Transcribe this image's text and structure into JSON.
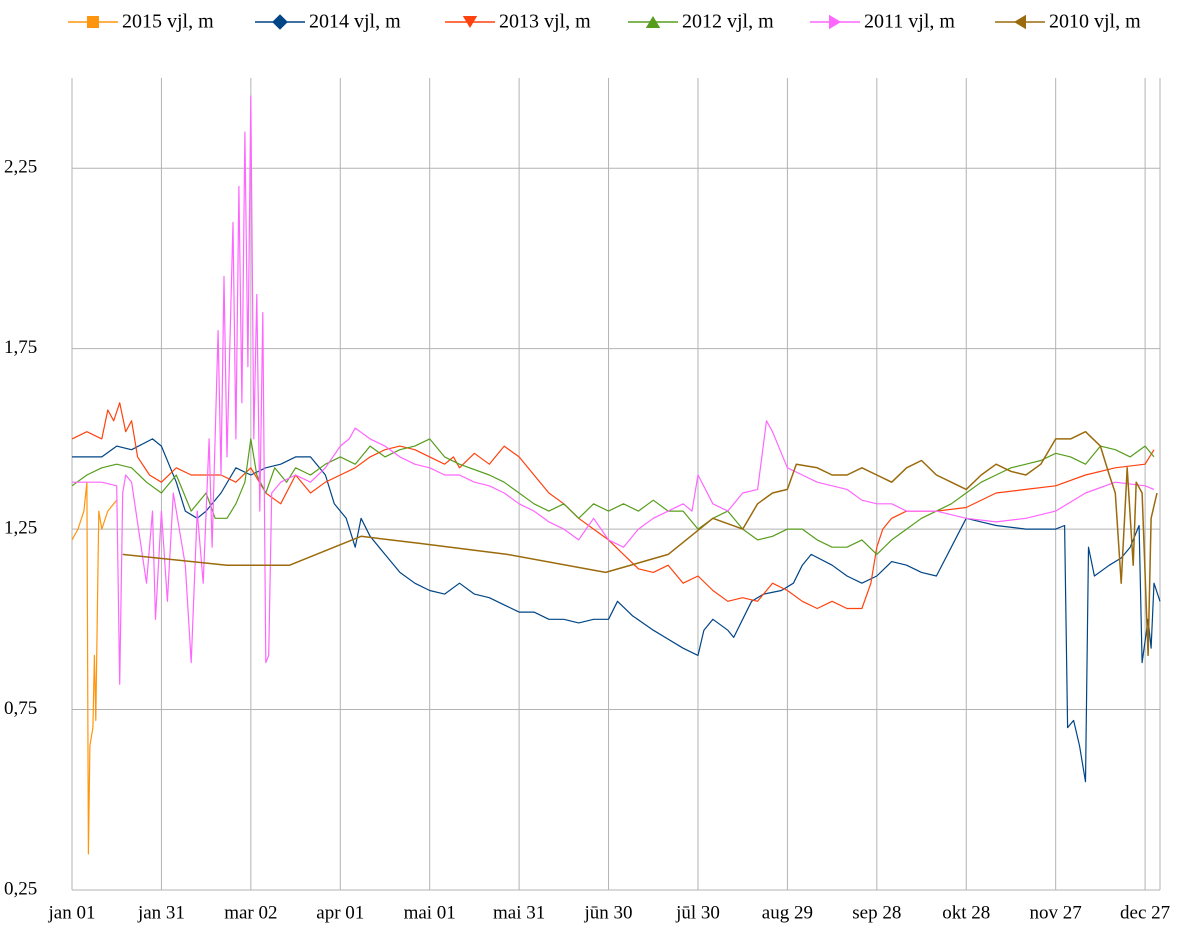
{
  "chart_data": {
    "type": "line",
    "xlim": [
      0,
      365
    ],
    "xticks": [
      {
        "value": 0,
        "label": "jan 01"
      },
      {
        "value": 30,
        "label": "jan 31"
      },
      {
        "value": 60,
        "label": "mar 02"
      },
      {
        "value": 90,
        "label": "apr 01"
      },
      {
        "value": 120,
        "label": "mai 01"
      },
      {
        "value": 150,
        "label": "mai 31"
      },
      {
        "value": 180,
        "label": "jūn 30"
      },
      {
        "value": 210,
        "label": "jūl 30"
      },
      {
        "value": 240,
        "label": "aug 29"
      },
      {
        "value": 270,
        "label": "sep 28"
      },
      {
        "value": 300,
        "label": "okt 28"
      },
      {
        "value": 330,
        "label": "nov 27"
      },
      {
        "value": 360,
        "label": "dec 27"
      }
    ],
    "ylim": [
      0.25,
      2.5
    ],
    "yticks": [
      {
        "value": 0.25,
        "label": "0,25"
      },
      {
        "value": 0.75,
        "label": "0,75"
      },
      {
        "value": 1.25,
        "label": "1,25"
      },
      {
        "value": 1.75,
        "label": "1,75"
      },
      {
        "value": 2.25,
        "label": "2,25"
      }
    ],
    "grid": true,
    "legend": "top",
    "series": [
      {
        "name": "2015 vjl, m",
        "color": "#ff950e",
        "marker": "square",
        "x": [
          0,
          2,
          4,
          5,
          5.5,
          6,
          7,
          7.5,
          8,
          9,
          10,
          12,
          14,
          15
        ],
        "values": [
          1.22,
          1.25,
          1.3,
          1.38,
          0.35,
          0.65,
          0.7,
          0.9,
          0.72,
          1.3,
          1.25,
          1.3,
          1.32,
          1.33
        ]
      },
      {
        "name": "2014 vjl, m",
        "color": "#004586",
        "marker": "diamond",
        "x": [
          0,
          10,
          15,
          20,
          27,
          30,
          35,
          38,
          42,
          45,
          50,
          55,
          60,
          65,
          70,
          75,
          80,
          85,
          88,
          92,
          95,
          97,
          100,
          105,
          110,
          115,
          120,
          125,
          130,
          135,
          140,
          145,
          150,
          155,
          160,
          165,
          170,
          175,
          180,
          183,
          188,
          195,
          205,
          210,
          212,
          215,
          220,
          222,
          228,
          232,
          238,
          242,
          245,
          248,
          255,
          260,
          265,
          270,
          275,
          280,
          285,
          290,
          295,
          300,
          305,
          310,
          320,
          330,
          333,
          334,
          336,
          338,
          340,
          341,
          343,
          348,
          352,
          355,
          358,
          359,
          361,
          362,
          363,
          365
        ],
        "values": [
          1.45,
          1.45,
          1.48,
          1.47,
          1.5,
          1.48,
          1.38,
          1.3,
          1.28,
          1.3,
          1.35,
          1.42,
          1.4,
          1.42,
          1.43,
          1.45,
          1.45,
          1.4,
          1.32,
          1.28,
          1.2,
          1.28,
          1.23,
          1.18,
          1.13,
          1.1,
          1.08,
          1.07,
          1.1,
          1.07,
          1.06,
          1.04,
          1.02,
          1.02,
          1.0,
          1.0,
          0.99,
          1.0,
          1.0,
          1.05,
          1.01,
          0.97,
          0.92,
          0.9,
          0.97,
          1.0,
          0.97,
          0.95,
          1.05,
          1.07,
          1.08,
          1.1,
          1.15,
          1.18,
          1.15,
          1.12,
          1.1,
          1.12,
          1.16,
          1.15,
          1.13,
          1.12,
          1.2,
          1.28,
          1.27,
          1.26,
          1.25,
          1.25,
          1.26,
          0.7,
          0.72,
          0.65,
          0.55,
          1.2,
          1.12,
          1.15,
          1.17,
          1.2,
          1.26,
          0.88,
          1.0,
          0.92,
          1.1,
          1.05
        ]
      },
      {
        "name": "2013 vjl, m",
        "color": "#ff420e",
        "marker": "down",
        "x": [
          0,
          5,
          10,
          12,
          14,
          16,
          18,
          20,
          22,
          26,
          30,
          35,
          40,
          50,
          55,
          60,
          65,
          70,
          75,
          80,
          85,
          90,
          95,
          100,
          105,
          110,
          115,
          120,
          125,
          128,
          130,
          135,
          140,
          145,
          150,
          155,
          160,
          165,
          170,
          175,
          180,
          185,
          190,
          195,
          200,
          205,
          210,
          215,
          220,
          225,
          230,
          235,
          240,
          245,
          250,
          255,
          260,
          265,
          268,
          270,
          272,
          275,
          280,
          290,
          300,
          310,
          320,
          330,
          340,
          350,
          360,
          363
        ],
        "values": [
          1.5,
          1.52,
          1.5,
          1.58,
          1.55,
          1.6,
          1.52,
          1.55,
          1.45,
          1.4,
          1.38,
          1.42,
          1.4,
          1.4,
          1.38,
          1.42,
          1.35,
          1.32,
          1.4,
          1.35,
          1.38,
          1.4,
          1.42,
          1.45,
          1.47,
          1.48,
          1.47,
          1.45,
          1.43,
          1.45,
          1.42,
          1.46,
          1.43,
          1.48,
          1.45,
          1.4,
          1.35,
          1.32,
          1.28,
          1.25,
          1.22,
          1.18,
          1.14,
          1.13,
          1.15,
          1.1,
          1.12,
          1.08,
          1.05,
          1.06,
          1.05,
          1.1,
          1.08,
          1.05,
          1.03,
          1.05,
          1.03,
          1.03,
          1.1,
          1.2,
          1.25,
          1.28,
          1.3,
          1.3,
          1.31,
          1.35,
          1.36,
          1.37,
          1.4,
          1.42,
          1.43,
          1.47
        ]
      },
      {
        "name": "2012 vjl, m",
        "color": "#579d1c",
        "marker": "up",
        "x": [
          0,
          5,
          10,
          15,
          20,
          25,
          30,
          35,
          40,
          45,
          48,
          52,
          55,
          58,
          60,
          62,
          65,
          68,
          72,
          75,
          80,
          85,
          90,
          95,
          100,
          105,
          110,
          115,
          120,
          125,
          130,
          140,
          145,
          150,
          155,
          160,
          165,
          170,
          175,
          180,
          185,
          190,
          195,
          200,
          205,
          210,
          215,
          220,
          225,
          230,
          235,
          240,
          245,
          250,
          255,
          260,
          265,
          270,
          275,
          280,
          285,
          290,
          295,
          300,
          305,
          310,
          315,
          320,
          325,
          330,
          335,
          340,
          345,
          350,
          355,
          360,
          363
        ],
        "values": [
          1.37,
          1.4,
          1.42,
          1.43,
          1.42,
          1.38,
          1.35,
          1.4,
          1.3,
          1.35,
          1.28,
          1.28,
          1.32,
          1.38,
          1.5,
          1.4,
          1.35,
          1.42,
          1.38,
          1.42,
          1.4,
          1.43,
          1.45,
          1.43,
          1.48,
          1.45,
          1.47,
          1.48,
          1.5,
          1.45,
          1.43,
          1.4,
          1.38,
          1.35,
          1.32,
          1.3,
          1.32,
          1.28,
          1.32,
          1.3,
          1.32,
          1.3,
          1.33,
          1.3,
          1.3,
          1.25,
          1.28,
          1.3,
          1.25,
          1.22,
          1.23,
          1.25,
          1.25,
          1.22,
          1.2,
          1.2,
          1.22,
          1.18,
          1.22,
          1.25,
          1.28,
          1.3,
          1.32,
          1.35,
          1.38,
          1.4,
          1.42,
          1.43,
          1.44,
          1.46,
          1.45,
          1.43,
          1.48,
          1.47,
          1.45,
          1.48,
          1.45
        ]
      },
      {
        "name": "2011 vjl, m",
        "color": "#ff66ff",
        "marker": "right",
        "x": [
          0,
          10,
          15,
          16,
          17,
          18,
          20,
          25,
          27,
          28,
          30,
          32,
          34,
          38,
          40,
          42,
          44,
          46,
          47,
          49,
          50,
          51,
          52,
          54,
          55,
          56,
          57,
          58,
          59,
          60,
          61,
          62,
          63,
          64,
          65,
          66,
          67,
          70,
          75,
          80,
          85,
          90,
          93,
          95,
          100,
          105,
          110,
          115,
          120,
          125,
          130,
          135,
          140,
          145,
          150,
          155,
          160,
          165,
          170,
          175,
          180,
          185,
          190,
          195,
          200,
          205,
          208,
          210,
          215,
          220,
          225,
          230,
          233,
          235,
          240,
          245,
          250,
          255,
          260,
          265,
          270,
          275,
          280,
          290,
          300,
          310,
          320,
          330,
          340,
          350,
          360,
          363
        ],
        "values": [
          1.38,
          1.38,
          1.37,
          0.82,
          1.35,
          1.4,
          1.38,
          1.1,
          1.3,
          1.0,
          1.3,
          1.05,
          1.35,
          1.15,
          0.88,
          1.3,
          1.1,
          1.5,
          1.2,
          1.8,
          1.4,
          1.95,
          1.45,
          2.1,
          1.5,
          2.2,
          1.6,
          2.35,
          1.7,
          2.45,
          1.5,
          1.9,
          1.3,
          1.85,
          0.88,
          0.9,
          1.35,
          1.38,
          1.4,
          1.38,
          1.42,
          1.48,
          1.5,
          1.53,
          1.5,
          1.48,
          1.45,
          1.43,
          1.42,
          1.4,
          1.4,
          1.38,
          1.37,
          1.35,
          1.32,
          1.3,
          1.27,
          1.25,
          1.22,
          1.28,
          1.22,
          1.2,
          1.25,
          1.28,
          1.3,
          1.32,
          1.3,
          1.4,
          1.32,
          1.3,
          1.35,
          1.36,
          1.55,
          1.52,
          1.42,
          1.4,
          1.38,
          1.37,
          1.36,
          1.33,
          1.32,
          1.32,
          1.3,
          1.3,
          1.28,
          1.27,
          1.28,
          1.3,
          1.35,
          1.38,
          1.37,
          1.36
        ]
      },
      {
        "name": "2010 vjl, m",
        "color": "#9b6a0c",
        "marker": "left",
        "x": [
          17,
          52,
          73,
          97,
          117,
          146,
          179,
          200,
          215,
          225,
          230,
          235,
          240,
          243,
          250,
          255,
          260,
          265,
          270,
          275,
          280,
          285,
          290,
          295,
          300,
          305,
          310,
          315,
          320,
          325,
          330,
          335,
          340,
          345,
          348,
          350,
          352,
          354,
          356,
          357,
          359,
          361,
          362,
          364
        ],
        "values": [
          1.18,
          1.15,
          1.15,
          1.23,
          1.21,
          1.18,
          1.13,
          1.18,
          1.28,
          1.25,
          1.32,
          1.35,
          1.36,
          1.43,
          1.42,
          1.4,
          1.4,
          1.42,
          1.4,
          1.38,
          1.42,
          1.44,
          1.4,
          1.38,
          1.36,
          1.4,
          1.43,
          1.41,
          1.4,
          1.43,
          1.5,
          1.5,
          1.52,
          1.48,
          1.4,
          1.35,
          1.1,
          1.42,
          1.15,
          1.38,
          1.35,
          0.9,
          1.28,
          1.35
        ]
      }
    ]
  }
}
